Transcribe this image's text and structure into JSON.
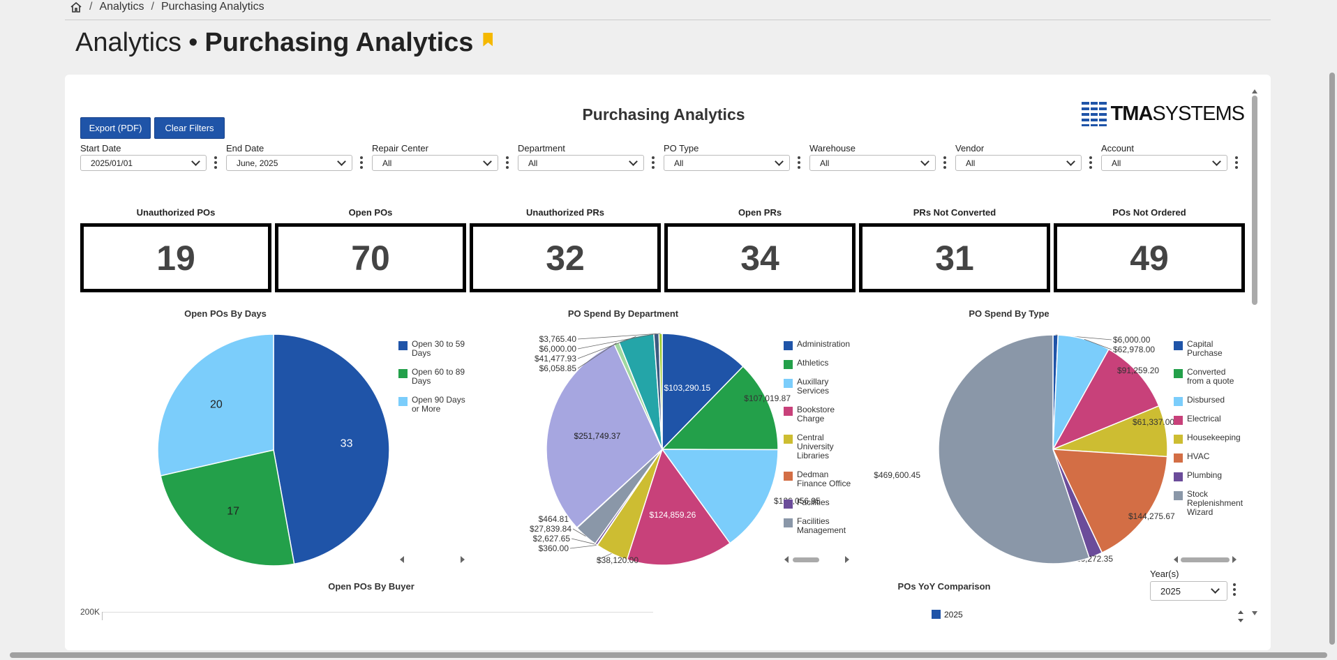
{
  "breadcrumb": {
    "items": [
      "Analytics",
      "Purchasing Analytics"
    ]
  },
  "page_title": {
    "light": "Analytics",
    "separator": "•",
    "bold": "Purchasing Analytics"
  },
  "report": {
    "title": "Purchasing Analytics",
    "logo_bold": "TMA",
    "logo_light": "SYSTEMS"
  },
  "buttons": {
    "export": "Export (PDF)",
    "clear": "Clear Filters"
  },
  "filters": [
    {
      "label": "Start Date",
      "value": "2025/01/01"
    },
    {
      "label": "End Date",
      "value": "June, 2025"
    },
    {
      "label": "Repair Center",
      "value": "All"
    },
    {
      "label": "Department",
      "value": "All"
    },
    {
      "label": "PO Type",
      "value": "All"
    },
    {
      "label": "Warehouse",
      "value": "All"
    },
    {
      "label": "Vendor",
      "value": "All"
    },
    {
      "label": "Account",
      "value": "All"
    }
  ],
  "kpis": [
    {
      "title": "Unauthorized POs",
      "value": "19"
    },
    {
      "title": "Open POs",
      "value": "70"
    },
    {
      "title": "Unauthorized PRs",
      "value": "32"
    },
    {
      "title": "Open PRs",
      "value": "34"
    },
    {
      "title": "PRs Not Converted",
      "value": "31"
    },
    {
      "title": "POs Not Ordered",
      "value": "49"
    }
  ],
  "chart_data": [
    {
      "type": "pie",
      "title": "Open POs By Days",
      "labels": [
        "Open 30 to 59 Days",
        "Open 60 to 89 Days",
        "Open 90 Days or More"
      ],
      "values": [
        33,
        17,
        20
      ],
      "colors": [
        "#1f54a8",
        "#23a04a",
        "#7bcdfb"
      ]
    },
    {
      "type": "pie",
      "title": "PO Spend By Department",
      "labels": [
        "Administration",
        "Athletics",
        "Auxillary Services",
        "Bookstore Charge",
        "Central University Libraries",
        "Dedman Finance Office",
        "Facilities",
        "Facilities Management"
      ],
      "slices": [
        {
          "label": "$103,290.15",
          "value": 103290.15,
          "color": "#1f54a8"
        },
        {
          "label": "$107,019.87",
          "value": 107019.87,
          "color": "#23a04a"
        },
        {
          "label": "$126,056.95",
          "value": 126056.95,
          "color": "#7bcdfb"
        },
        {
          "label": "$124,859.26",
          "value": 124859.26,
          "color": "#c8417a"
        },
        {
          "label": "$38,120.00",
          "value": 38120.0,
          "color": "#cdbd32"
        },
        {
          "label": "$360.00",
          "value": 360.0,
          "color": "#d36e45"
        },
        {
          "label": "$2,627.65",
          "value": 2627.65,
          "color": "#6b4c9a"
        },
        {
          "label": "$27,839.84",
          "value": 27839.84,
          "color": "#8a97a8"
        },
        {
          "label": "$464.81",
          "value": 464.81,
          "color": "#c9d6e6"
        },
        {
          "label": "$251,749.37",
          "value": 251749.37,
          "color": "#a6a6e0"
        },
        {
          "label": "$6,058.85",
          "value": 6058.85,
          "color": "#a0d8a0"
        },
        {
          "label": "$41,477.93",
          "value": 41477.93,
          "color": "#24a5a8"
        },
        {
          "label": "$6,000.00",
          "value": 6000.0,
          "color": "#3b5a80"
        },
        {
          "label": "$3,765.40",
          "value": 3765.4,
          "color": "#9ccb2c"
        }
      ],
      "legend_colors": [
        "#1f54a8",
        "#23a04a",
        "#7bcdfb",
        "#c8417a",
        "#cdbd32",
        "#d36e45",
        "#6b4c9a",
        "#8a97a8"
      ]
    },
    {
      "type": "pie",
      "title": "PO Spend By Type",
      "labels": [
        "Capital Purchase",
        "Converted from a quote",
        "Disbursed",
        "Electrical",
        "Housekeeping",
        "HVAC",
        "Plumbing",
        "Stock Replenishment Wizard"
      ],
      "slices": [
        {
          "label": "$6,000.00",
          "value": 6000.0,
          "color": "#1f54a8"
        },
        {
          "label": "$62,978.00",
          "value": 62978.0,
          "color": "#7bcdfb"
        },
        {
          "label": "$91,259.20",
          "value": 91259.2,
          "color": "#c8417a"
        },
        {
          "label": "$61,337.00",
          "value": 61337.0,
          "color": "#cdbd32"
        },
        {
          "label": "$144,275.67",
          "value": 144275.67,
          "color": "#d36e45"
        },
        {
          "label": "$16,272.35",
          "value": 16272.35,
          "color": "#6b4c9a"
        },
        {
          "label": "$469,600.45",
          "value": 469600.45,
          "color": "#8a97a8"
        }
      ],
      "legend_colors": [
        "#1f54a8",
        "#23a04a",
        "#7bcdfb",
        "#c8417a",
        "#cdbd32",
        "#d36e45",
        "#6b4c9a",
        "#8a97a8"
      ]
    },
    {
      "type": "bar",
      "title": "Open POs By Buyer",
      "ytick": "200K"
    },
    {
      "type": "bar",
      "title": "POs YoY Comparison",
      "legend": [
        "2025"
      ],
      "colors": [
        "#1f54a8"
      ]
    }
  ],
  "year_select": {
    "label": "Year(s)",
    "value": "2025"
  }
}
